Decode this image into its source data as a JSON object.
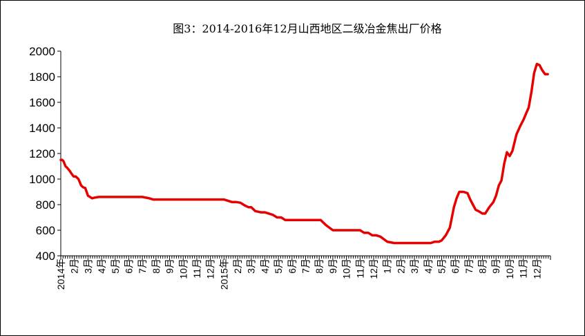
{
  "chart_data": {
    "type": "line",
    "title": "图3：2014-2016年12月山西地区二级冶金焦出厂价格",
    "xlabel": "",
    "ylabel": "",
    "ylim": [
      400,
      2000
    ],
    "yticks": [
      "400",
      "600",
      "800",
      "1000",
      "1200",
      "1400",
      "1600",
      "1800",
      "2000"
    ],
    "x_tick_labels": [
      "2014年",
      "2月",
      "3月",
      "4月",
      "5月",
      "6月",
      "7月",
      "8月",
      "9月",
      "10月",
      "11月",
      "12月",
      "2015年",
      "2月",
      "3月",
      "4月",
      "5月",
      "6月",
      "7月",
      "8月",
      "9月",
      "10月",
      "11月",
      "12月",
      "1月",
      "2月",
      "3月",
      "4月",
      "5月",
      "6月",
      "7月",
      "8月",
      "9月",
      "10月",
      "11月",
      "12月"
    ],
    "grid": false,
    "legend": "none",
    "line_color": "#e60000",
    "series": [
      {
        "x": [
          0,
          0.1,
          0.2,
          0.35,
          0.5,
          0.65,
          0.8,
          0.95,
          1.1,
          1.3,
          1.5,
          1.65,
          1.8,
          2.0,
          2.3,
          2.5,
          2.8,
          3.0,
          3.3,
          3.6,
          4.0,
          4.5,
          5.0,
          5.5,
          6.0,
          6.5,
          6.8,
          7.0,
          7.5,
          8.0,
          8.5,
          9.0,
          9.5,
          10.0,
          10.5,
          11.0,
          11.5,
          12.0,
          12.3,
          12.6,
          12.9,
          13.2,
          13.5,
          13.8,
          14.0,
          14.3,
          14.7,
          15.0,
          15.3,
          15.6,
          15.9,
          16.2,
          16.5,
          17.0,
          17.5,
          17.9,
          18.2,
          18.5,
          18.8,
          19.1,
          19.5,
          20.0,
          20.3,
          20.7,
          21.0,
          21.3,
          21.6,
          22.0,
          22.3,
          22.6,
          22.9,
          23.2,
          23.5,
          24.0,
          24.5,
          25.0,
          25.5,
          26.0,
          26.3,
          26.6,
          26.9,
          27.2,
          27.5,
          27.8,
          28.0,
          28.3,
          28.6,
          28.9,
          29.1,
          29.3,
          29.6,
          29.9,
          30.1,
          30.3,
          30.5,
          30.7,
          31.0,
          31.2,
          31.5,
          31.8,
          32.0,
          32.2,
          32.4,
          32.6,
          32.8,
          33.0,
          33.2,
          33.5,
          33.8,
          34.0,
          34.2,
          34.4,
          34.6,
          34.8,
          35.0,
          35.2,
          35.4,
          35.6,
          35.8
        ],
        "values": [
          1150,
          1150,
          1140,
          1100,
          1085,
          1065,
          1040,
          1020,
          1020,
          1000,
          950,
          935,
          930,
          870,
          850,
          855,
          860,
          860,
          860,
          860,
          860,
          860,
          860,
          860,
          860,
          850,
          840,
          840,
          840,
          840,
          840,
          840,
          840,
          840,
          840,
          840,
          840,
          840,
          830,
          820,
          820,
          815,
          795,
          780,
          780,
          750,
          740,
          740,
          730,
          720,
          700,
          700,
          680,
          680,
          680,
          680,
          680,
          680,
          680,
          680,
          640,
          600,
          600,
          600,
          600,
          600,
          600,
          600,
          580,
          580,
          560,
          560,
          550,
          510,
          500,
          500,
          500,
          500,
          500,
          500,
          500,
          500,
          510,
          510,
          520,
          560,
          620,
          780,
          850,
          900,
          900,
          890,
          840,
          800,
          760,
          750,
          730,
          730,
          780,
          820,
          870,
          950,
          990,
          1120,
          1210,
          1180,
          1220,
          1350,
          1420,
          1460,
          1510,
          1560,
          1680,
          1830,
          1900,
          1890,
          1850,
          1820,
          1820
        ]
      }
    ]
  }
}
